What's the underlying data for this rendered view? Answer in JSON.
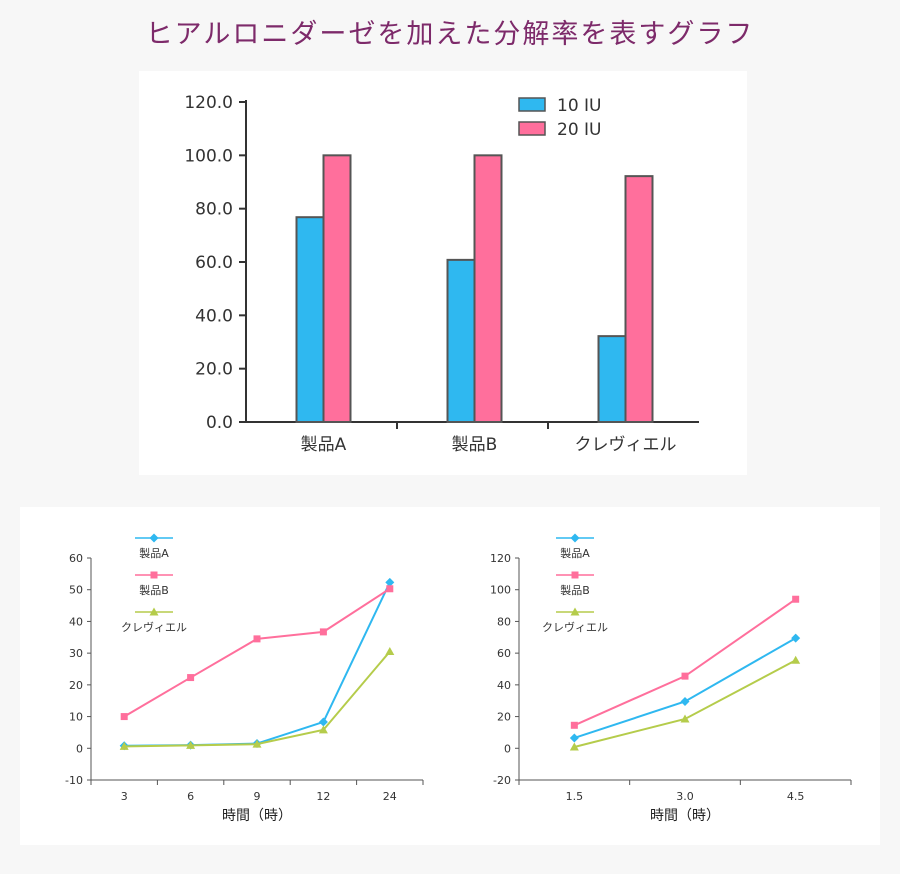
{
  "title": "ヒアルロニダーゼを加えた分解率を表すグラフ",
  "colors": {
    "blue": "#2fb8f0",
    "pink": "#ff6f9c",
    "green": "#b5cc4b",
    "title": "#7d2a6a"
  },
  "chart_data": [
    {
      "type": "bar",
      "categories": [
        "製品A",
        "製品B",
        "クレヴィエル"
      ],
      "series": [
        {
          "name": "10 IU",
          "color": "#2fb8f0",
          "values": [
            76.8,
            60.8,
            32.2
          ]
        },
        {
          "name": "20 IU",
          "color": "#ff6f9c",
          "values": [
            100.0,
            100.0,
            92.2
          ]
        }
      ],
      "ylim": [
        0,
        120
      ],
      "yticks": [
        "0.0",
        "20.0",
        "40.0",
        "60.0",
        "80.0",
        "100.0",
        "120.0"
      ],
      "legend": "top-right",
      "grid": false
    },
    {
      "type": "line",
      "x": [
        "3",
        "6",
        "9",
        "12",
        "24"
      ],
      "xlabel": "時間（時）",
      "ylim": [
        -10,
        60
      ],
      "yticks": [
        "-10",
        "0",
        "10",
        "20",
        "30",
        "40",
        "50",
        "60"
      ],
      "series": [
        {
          "name": "製品A",
          "color": "#2fb8f0",
          "marker": "diamond",
          "values": [
            0.8,
            1.0,
            1.5,
            8.3,
            52.3
          ]
        },
        {
          "name": "製品B",
          "color": "#ff6f9c",
          "marker": "square",
          "values": [
            10.0,
            22.3,
            34.5,
            36.7,
            50.3
          ]
        },
        {
          "name": "クレヴィエル",
          "color": "#b5cc4b",
          "marker": "triangle",
          "values": [
            0.6,
            0.9,
            1.3,
            5.8,
            30.5
          ]
        }
      ],
      "legend": "top-left",
      "grid": false
    },
    {
      "type": "line",
      "x": [
        "1.5",
        "3.0",
        "4.5"
      ],
      "xlabel": "時間（時）",
      "ylim": [
        -20,
        120
      ],
      "yticks": [
        "-20",
        "0",
        "20",
        "40",
        "60",
        "80",
        "100",
        "120"
      ],
      "series": [
        {
          "name": "製品A",
          "color": "#2fb8f0",
          "marker": "diamond",
          "values": [
            6.5,
            29.5,
            69.5
          ]
        },
        {
          "name": "製品B",
          "color": "#ff6f9c",
          "marker": "square",
          "values": [
            14.5,
            45.5,
            94.0
          ]
        },
        {
          "name": "クレヴィエル",
          "color": "#b5cc4b",
          "marker": "triangle",
          "values": [
            0.8,
            18.5,
            55.5
          ]
        }
      ],
      "legend": "top-left",
      "grid": false
    }
  ]
}
